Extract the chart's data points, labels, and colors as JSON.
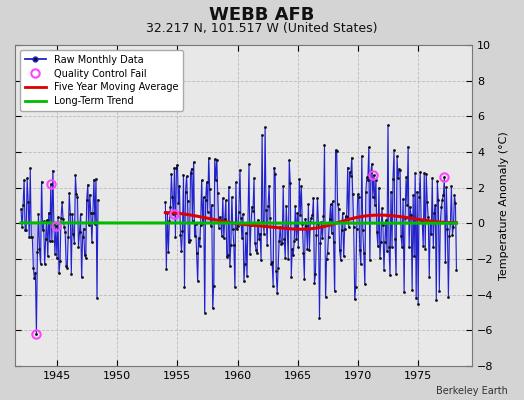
{
  "title": "WEBB AFB",
  "subtitle": "32.217 N, 101.517 W (United States)",
  "ylabel": "Temperature Anomaly (°C)",
  "credit": "Berkeley Earth",
  "xlim": [
    1941.5,
    1979.5
  ],
  "ylim": [
    -8,
    10
  ],
  "yticks": [
    -8,
    -6,
    -4,
    -2,
    0,
    2,
    4,
    6,
    8,
    10
  ],
  "xticks": [
    1945,
    1950,
    1955,
    1960,
    1965,
    1970,
    1975
  ],
  "fig_bg": "#d4d4d4",
  "plot_bg": "#e8e8e8",
  "grid_color": "#bbbbbb",
  "line_color": "#2222cc",
  "fill_color": "#9999ee",
  "dot_color": "#111111",
  "ma_color": "#dd0000",
  "trend_color": "#00bb00",
  "qc_color": "#ff44ff",
  "title_fontsize": 13,
  "subtitle_fontsize": 9,
  "tick_labelsize": 8,
  "ylabel_fontsize": 8,
  "legend_fontsize": 7,
  "credit_fontsize": 7,
  "qc_points": [
    [
      1943.25,
      -6.2
    ],
    [
      1944.5,
      2.2
    ],
    [
      1944.9,
      -0.15
    ],
    [
      1954.7,
      0.5
    ],
    [
      1971.3,
      2.7
    ],
    [
      1977.2,
      2.6
    ]
  ]
}
